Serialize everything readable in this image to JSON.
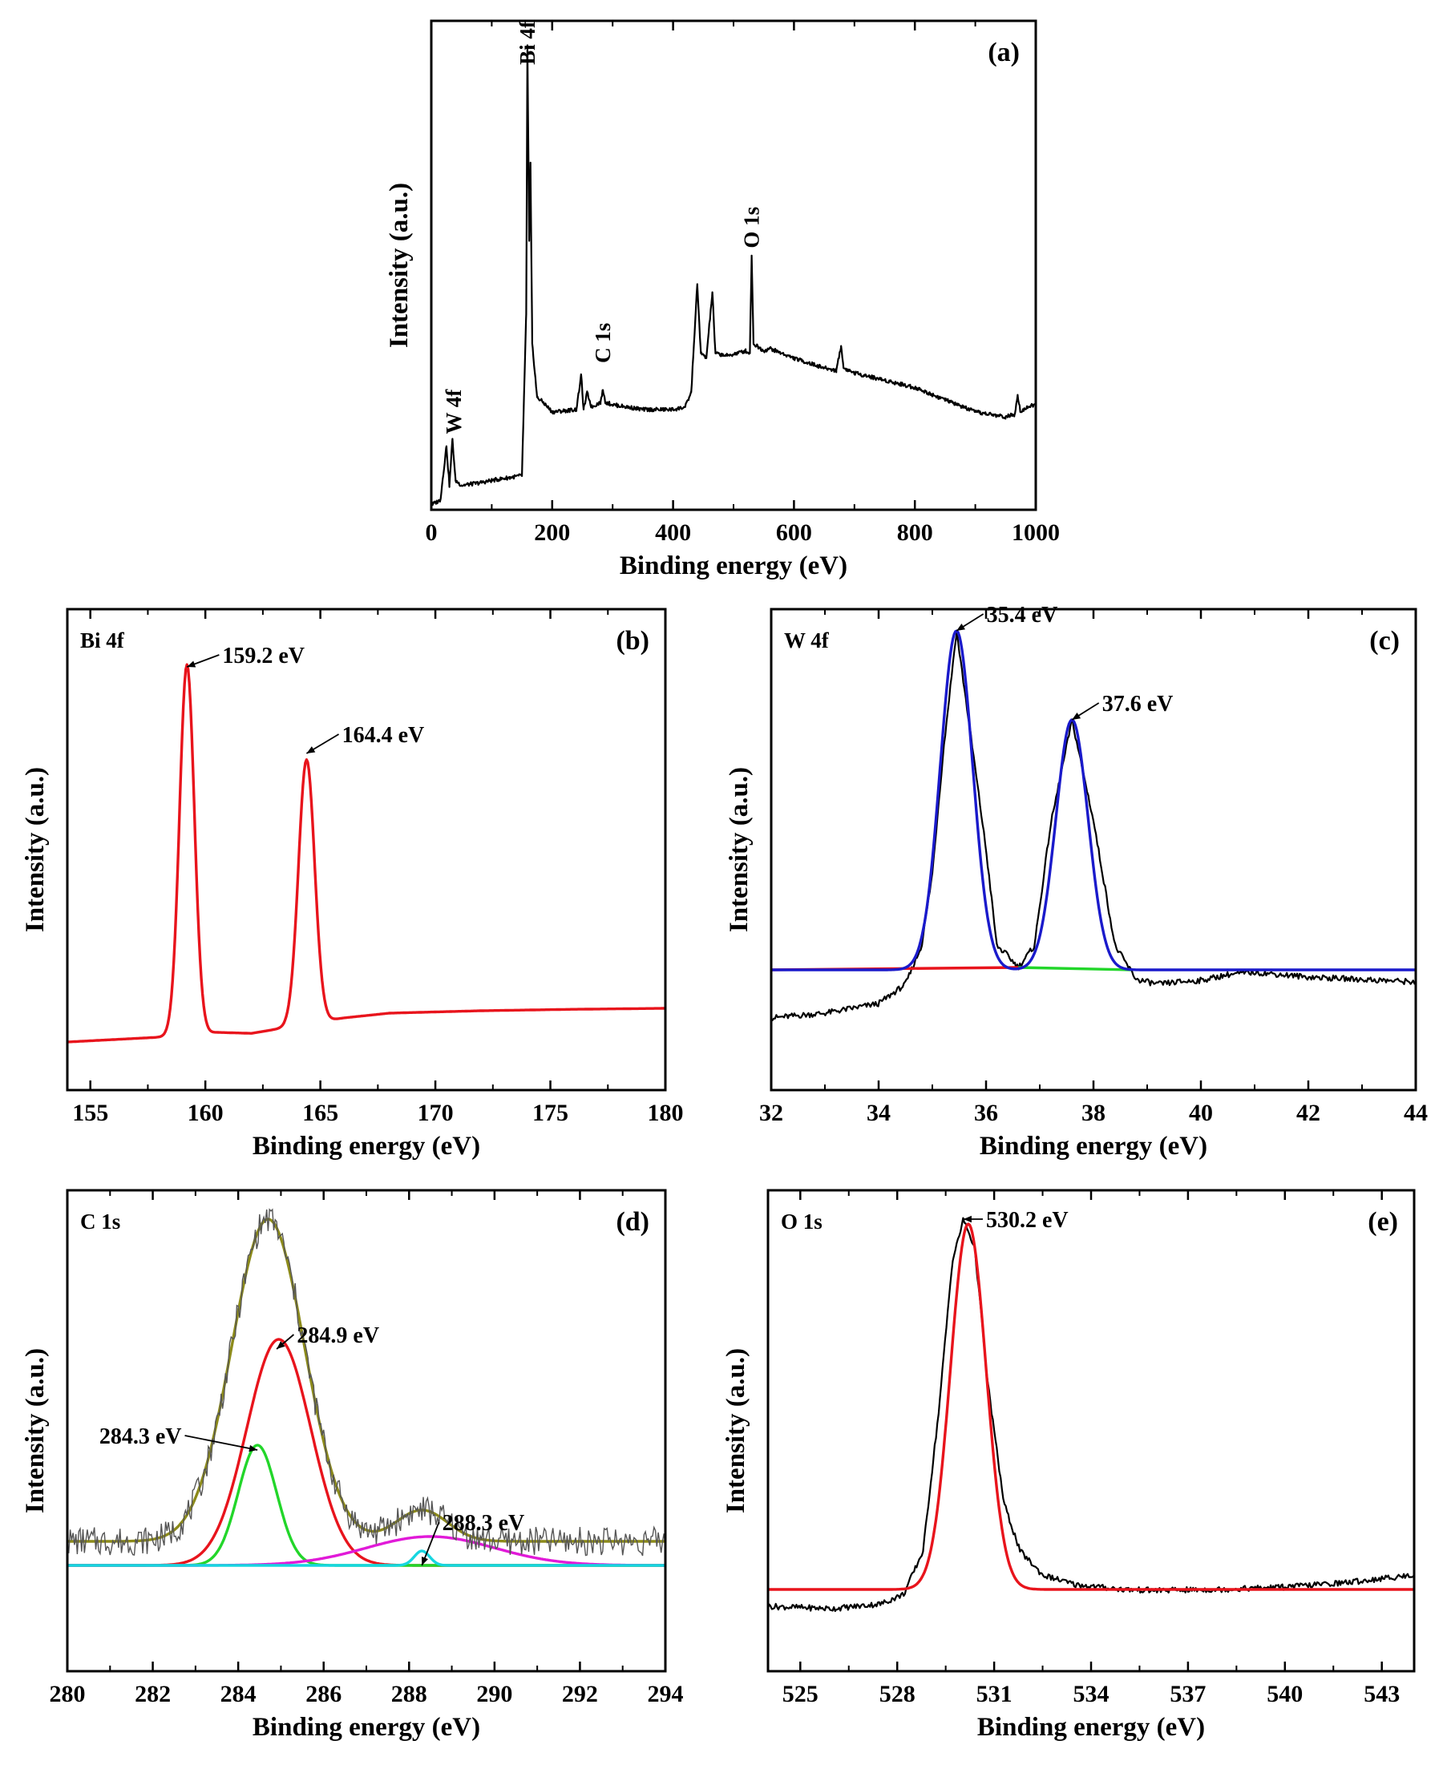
{
  "figure": {
    "background": "#ffffff",
    "axis_color": "#000000"
  },
  "chart_data": [
    {
      "id": "a",
      "type": "line",
      "panel_label": "(a)",
      "xlabel": "Binding energy (eV)",
      "ylabel": "Intensity (a.u.)",
      "xlim": [
        0,
        1000
      ],
      "ylim": [
        0,
        1.0
      ],
      "xticks": [
        0,
        200,
        400,
        600,
        800,
        1000
      ],
      "yticks_shown": false,
      "grid": false,
      "peak_labels": [
        {
          "text": "W 4f",
          "x": 37,
          "y": 0.155
        },
        {
          "text": "Bi 4f",
          "x": 159,
          "y": 0.91
        },
        {
          "text": "C 1s",
          "x": 284,
          "y": 0.3
        },
        {
          "text": "O 1s",
          "x": 530,
          "y": 0.535
        }
      ],
      "series": [
        {
          "color": "#000000",
          "points": [
            [
              0,
              0.01
            ],
            [
              15,
              0.02
            ],
            [
              25,
              0.13
            ],
            [
              30,
              0.05
            ],
            [
              35,
              0.145
            ],
            [
              40,
              0.06
            ],
            [
              50,
              0.05
            ],
            [
              80,
              0.055
            ],
            [
              100,
              0.06
            ],
            [
              150,
              0.07
            ],
            [
              157,
              0.4
            ],
            [
              159,
              0.95
            ],
            [
              162,
              0.55
            ],
            [
              164,
              0.71
            ],
            [
              167,
              0.34
            ],
            [
              175,
              0.23
            ],
            [
              185,
              0.22
            ],
            [
              200,
              0.2
            ],
            [
              240,
              0.205
            ],
            [
              248,
              0.275
            ],
            [
              252,
              0.205
            ],
            [
              258,
              0.24
            ],
            [
              265,
              0.21
            ],
            [
              280,
              0.22
            ],
            [
              284,
              0.245
            ],
            [
              288,
              0.22
            ],
            [
              300,
              0.215
            ],
            [
              350,
              0.205
            ],
            [
              400,
              0.205
            ],
            [
              420,
              0.21
            ],
            [
              430,
              0.24
            ],
            [
              440,
              0.46
            ],
            [
              446,
              0.32
            ],
            [
              455,
              0.31
            ],
            [
              465,
              0.445
            ],
            [
              470,
              0.32
            ],
            [
              490,
              0.315
            ],
            [
              520,
              0.325
            ],
            [
              527,
              0.32
            ],
            [
              530,
              0.52
            ],
            [
              533,
              0.34
            ],
            [
              550,
              0.325
            ],
            [
              560,
              0.33
            ],
            [
              600,
              0.31
            ],
            [
              650,
              0.29
            ],
            [
              670,
              0.285
            ],
            [
              678,
              0.335
            ],
            [
              682,
              0.29
            ],
            [
              700,
              0.28
            ],
            [
              750,
              0.265
            ],
            [
              800,
              0.25
            ],
            [
              850,
              0.225
            ],
            [
              900,
              0.2
            ],
            [
              950,
              0.19
            ],
            [
              965,
              0.195
            ],
            [
              970,
              0.235
            ],
            [
              975,
              0.2
            ],
            [
              985,
              0.21
            ],
            [
              1000,
              0.215
            ]
          ]
        }
      ]
    },
    {
      "id": "b",
      "type": "line",
      "panel_label": "(b)",
      "region_label": "Bi 4f",
      "xlabel": "Binding energy (eV)",
      "ylabel": "Intensity (a.u.)",
      "xlim": [
        154,
        180
      ],
      "ylim": [
        0,
        1.0
      ],
      "xticks": [
        155,
        160,
        165,
        170,
        175,
        180
      ],
      "yticks_shown": false,
      "grid": false,
      "annotations": [
        {
          "text": "159.2 eV",
          "x": 159.2,
          "y": 0.88,
          "dx": 1.4,
          "dy": 0.025
        },
        {
          "text": "164.4 eV",
          "x": 164.4,
          "y": 0.7,
          "dx": 1.4,
          "dy": 0.04
        }
      ],
      "series": [
        {
          "color": "#e8141c",
          "baseline": [
            [
              154,
              0.1
            ],
            [
              158,
              0.11
            ],
            [
              160.5,
              0.12
            ],
            [
              162,
              0.118
            ],
            [
              166,
              0.15
            ],
            [
              168,
              0.16
            ],
            [
              172,
              0.165
            ],
            [
              176,
              0.168
            ],
            [
              180,
              0.17
            ]
          ],
          "peaks": [
            {
              "center": 159.2,
              "height": 0.77,
              "width": 0.32
            },
            {
              "center": 164.4,
              "height": 0.55,
              "width": 0.35
            }
          ]
        }
      ]
    },
    {
      "id": "c",
      "type": "line",
      "panel_label": "(c)",
      "region_label": "W 4f",
      "xlabel": "Binding energy (eV)",
      "ylabel": "Intensity (a.u.)",
      "xlim": [
        32,
        44
      ],
      "ylim": [
        0,
        1.0
      ],
      "xticks": [
        32,
        34,
        36,
        38,
        40,
        42,
        44
      ],
      "yticks_shown": false,
      "grid": false,
      "annotations": [
        {
          "text": "35.4 eV",
          "x": 35.45,
          "y": 0.955,
          "dx": 0.5,
          "dy": 0.035
        },
        {
          "text": "37.6 eV",
          "x": 37.6,
          "y": 0.77,
          "dx": 0.5,
          "dy": 0.035
        }
      ],
      "series": [
        {
          "name": "raw",
          "color": "#000000",
          "points": [
            [
              32,
              0.15
            ],
            [
              33,
              0.16
            ],
            [
              34,
              0.18
            ],
            [
              34.5,
              0.22
            ],
            [
              34.8,
              0.3
            ],
            [
              35.0,
              0.45
            ],
            [
              35.2,
              0.7
            ],
            [
              35.45,
              0.955
            ],
            [
              35.7,
              0.75
            ],
            [
              36.0,
              0.5
            ],
            [
              36.2,
              0.3
            ],
            [
              36.4,
              0.28
            ],
            [
              36.6,
              0.255
            ],
            [
              36.9,
              0.3
            ],
            [
              37.2,
              0.55
            ],
            [
              37.6,
              0.77
            ],
            [
              38.0,
              0.56
            ],
            [
              38.4,
              0.3
            ],
            [
              38.8,
              0.23
            ],
            [
              39.2,
              0.22
            ],
            [
              39.6,
              0.225
            ],
            [
              40.0,
              0.228
            ],
            [
              40.5,
              0.24
            ],
            [
              41.0,
              0.245
            ],
            [
              41.5,
              0.24
            ],
            [
              42.0,
              0.235
            ],
            [
              43.0,
              0.23
            ],
            [
              44.0,
              0.225
            ]
          ]
        },
        {
          "name": "baseline-left",
          "color": "#e8141c",
          "points": [
            [
              32,
              0.25
            ],
            [
              36.6,
              0.255
            ]
          ]
        },
        {
          "name": "baseline-right",
          "color": "#22d62a",
          "points": [
            [
              36.6,
              0.255
            ],
            [
              38.7,
              0.25
            ]
          ]
        },
        {
          "name": "fit",
          "color": "#1a1acb",
          "baseline": 0.25,
          "peaks": [
            {
              "center": 35.45,
              "height": 0.705,
              "width": 0.3
            },
            {
              "center": 37.6,
              "height": 0.52,
              "width": 0.3
            }
          ]
        }
      ]
    },
    {
      "id": "d",
      "type": "line",
      "panel_label": "(d)",
      "region_label": "C 1s",
      "xlabel": "Binding energy (eV)",
      "ylabel": "Intensity (a.u.)",
      "xlim": [
        280,
        294
      ],
      "ylim": [
        0,
        1.0
      ],
      "xticks": [
        280,
        282,
        284,
        286,
        288,
        290,
        292,
        294
      ],
      "yticks_shown": false,
      "grid": false,
      "annotations": [
        {
          "text": "284.9 eV",
          "x": 284.9,
          "y": 0.67,
          "dx": 0.4,
          "dy": 0.03
        },
        {
          "text": "284.3 eV",
          "x": 284.45,
          "y": 0.46,
          "dx": -1.7,
          "dy": 0.03
        },
        {
          "text": "288.3 eV",
          "x": 288.3,
          "y": 0.22,
          "dx": 0.4,
          "dy": 0.09
        }
      ],
      "series": [
        {
          "name": "envelope",
          "color": "#8c8a1a",
          "baseline": 0.27,
          "peaks": [
            {
              "center": 284.7,
              "height": 0.67,
              "width": 0.85
            },
            {
              "center": 288.3,
              "height": 0.065,
              "width": 0.6
            }
          ]
        },
        {
          "name": "284.9 component",
          "color": "#e8141c",
          "baseline": 0.22,
          "peaks": [
            {
              "center": 284.95,
              "height": 0.47,
              "width": 0.75
            }
          ]
        },
        {
          "name": "284.3 component",
          "color": "#22d62a",
          "baseline": 0.22,
          "peaks": [
            {
              "center": 284.45,
              "height": 0.25,
              "width": 0.45
            }
          ]
        },
        {
          "name": "broad component",
          "color": "#e11ad8",
          "baseline": 0.22,
          "peaks": [
            {
              "center": 288.5,
              "height": 0.06,
              "width": 1.5
            }
          ]
        },
        {
          "name": "288.3 component",
          "color": "#16d6e0",
          "baseline": 0.22,
          "peaks": [
            {
              "center": 288.3,
              "height": 0.03,
              "width": 0.18
            }
          ]
        }
      ],
      "noise_color": "#555555"
    },
    {
      "id": "e",
      "type": "line",
      "panel_label": "(e)",
      "region_label": "O 1s",
      "xlabel": "Binding energy (eV)",
      "ylabel": "Intensity (a.u.)",
      "xlim": [
        524,
        544
      ],
      "ylim": [
        0,
        1.0
      ],
      "xticks": [
        525,
        528,
        531,
        534,
        537,
        540,
        543
      ],
      "yticks_shown": false,
      "grid": false,
      "annotations": [
        {
          "text": "530.2 eV",
          "x": 530.05,
          "y": 0.94,
          "dx": 0.6,
          "dy": 0.0
        }
      ],
      "series": [
        {
          "name": "raw",
          "color": "#000000",
          "points": [
            [
              524,
              0.135
            ],
            [
              526,
              0.13
            ],
            [
              527.5,
              0.14
            ],
            [
              528.2,
              0.16
            ],
            [
              528.8,
              0.25
            ],
            [
              529.3,
              0.55
            ],
            [
              529.7,
              0.85
            ],
            [
              530.05,
              0.94
            ],
            [
              530.4,
              0.88
            ],
            [
              530.8,
              0.6
            ],
            [
              531.3,
              0.35
            ],
            [
              531.8,
              0.25
            ],
            [
              532.5,
              0.2
            ],
            [
              533.5,
              0.18
            ],
            [
              535,
              0.17
            ],
            [
              536,
              0.168
            ],
            [
              538,
              0.17
            ],
            [
              540,
              0.175
            ],
            [
              542,
              0.185
            ],
            [
              544,
              0.2
            ]
          ]
        },
        {
          "name": "fit",
          "color": "#e8141c",
          "baseline": 0.17,
          "peaks": [
            {
              "center": 530.2,
              "height": 0.76,
              "width": 0.55
            }
          ]
        }
      ]
    }
  ]
}
